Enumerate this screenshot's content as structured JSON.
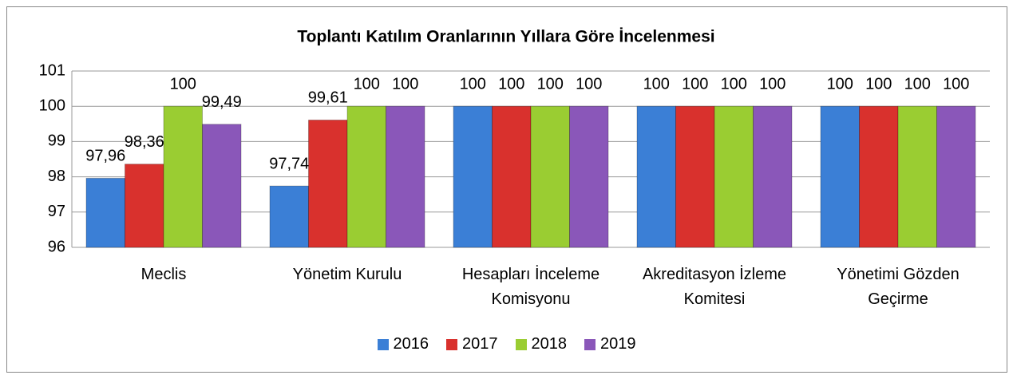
{
  "chart_data": {
    "type": "bar",
    "title": "Toplantı Katılım Oranlarının Yıllara Göre İncelenmesi",
    "categories": [
      "Meclis",
      "Yönetim Kurulu",
      "Hesapları İnceleme Komisyonu",
      "Akreditasyon İzleme Komitesi",
      "Yönetimi Gözden Geçirme"
    ],
    "series": [
      {
        "name": "2016",
        "color": "#3b7fd6",
        "values": [
          97.96,
          97.74,
          100,
          100,
          100
        ],
        "value_labels": [
          "97,96",
          "97,74",
          "100",
          "100",
          "100"
        ]
      },
      {
        "name": "2017",
        "color": "#d9312d",
        "values": [
          98.36,
          99.61,
          100,
          100,
          100
        ],
        "value_labels": [
          "98,36",
          "99,61",
          "100",
          "100",
          "100"
        ]
      },
      {
        "name": "2018",
        "color": "#9acd32",
        "values": [
          100,
          100,
          100,
          100,
          100
        ],
        "value_labels": [
          "100",
          "100",
          "100",
          "100",
          "100"
        ]
      },
      {
        "name": "2019",
        "color": "#8a57b9",
        "values": [
          99.49,
          100,
          100,
          100,
          100
        ],
        "value_labels": [
          "99,49",
          "100",
          "100",
          "100",
          "100"
        ]
      }
    ],
    "ylim": [
      96,
      101
    ],
    "yticks": [
      96,
      97,
      98,
      99,
      100,
      101
    ],
    "grid": true,
    "legend": "bottom"
  }
}
